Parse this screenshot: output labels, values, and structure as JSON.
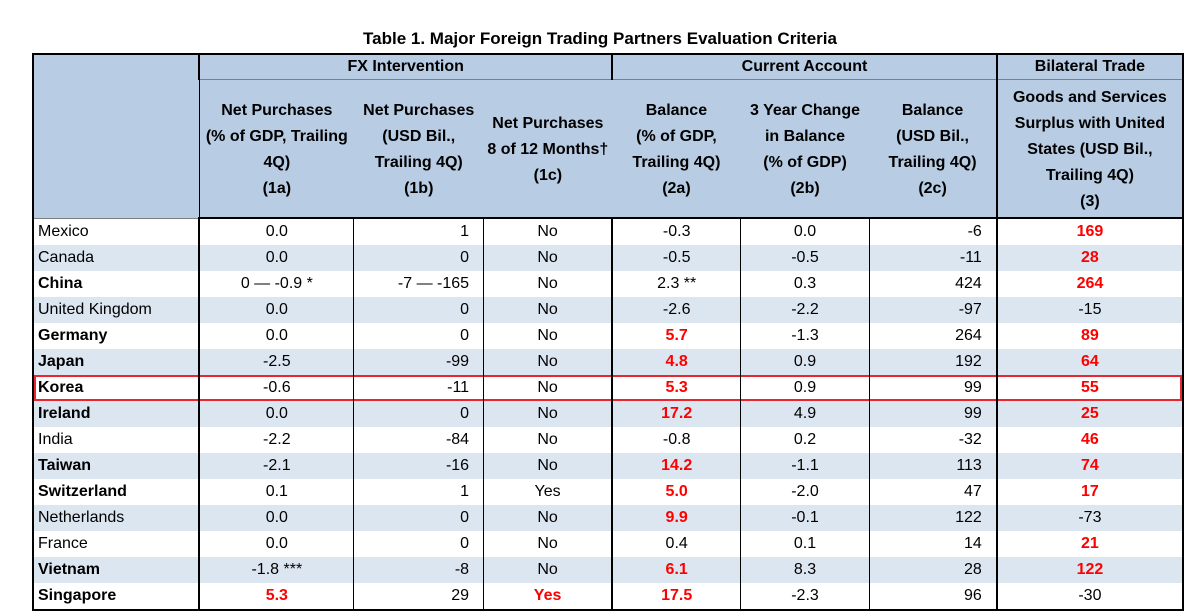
{
  "title": "Table 1. Major Foreign Trading Partners Evaluation Criteria",
  "groups": {
    "fx": "FX Intervention",
    "ca": "Current Account",
    "bt": "Bilateral Trade"
  },
  "columns": [
    "Net Purchases (% of GDP, Trailing 4Q) (1a)",
    "Net Purchases (USD Bil., Trailing 4Q) (1b)",
    "Net Purchases 8 of 12 Months† (1c)",
    "Balance (% of GDP, Trailing 4Q) (2a)",
    "3 Year Change in Balance (% of GDP) (2b)",
    "Balance (USD Bil., Trailing 4Q) (2c)",
    "Goods and Services Surplus with United States (USD Bil., Trailing 4Q) (3)"
  ],
  "rows": [
    {
      "country": "Mexico",
      "c1a": "0.0",
      "c1b": "1",
      "c1c": "No",
      "c2a": "-0.3",
      "c2b": "0.0",
      "c2c": "-6",
      "c3": "169"
    },
    {
      "country": "Canada",
      "c1a": "0.0",
      "c1b": "0",
      "c1c": "No",
      "c2a": "-0.5",
      "c2b": "-0.5",
      "c2c": "-11",
      "c3": "28"
    },
    {
      "country": "China",
      "c1a": "0 — -0.9 *",
      "c1b": "-7 — -165",
      "c1c": "No",
      "c2a": "2.3 **",
      "c2b": "0.3",
      "c2c": "424",
      "c3": "264"
    },
    {
      "country": "United Kingdom",
      "c1a": "0.0",
      "c1b": "0",
      "c1c": "No",
      "c2a": "-2.6",
      "c2b": "-2.2",
      "c2c": "-97",
      "c3": "-15"
    },
    {
      "country": "Germany",
      "c1a": "0.0",
      "c1b": "0",
      "c1c": "No",
      "c2a": "5.7",
      "c2b": "-1.3",
      "c2c": "264",
      "c3": "89"
    },
    {
      "country": "Japan",
      "c1a": "-2.5",
      "c1b": "-99",
      "c1c": "No",
      "c2a": "4.8",
      "c2b": "0.9",
      "c2c": "192",
      "c3": "64"
    },
    {
      "country": "Korea",
      "c1a": "-0.6",
      "c1b": "-11",
      "c1c": "No",
      "c2a": "5.3",
      "c2b": "0.9",
      "c2c": "99",
      "c3": "55"
    },
    {
      "country": "Ireland",
      "c1a": "0.0",
      "c1b": "0",
      "c1c": "No",
      "c2a": "17.2",
      "c2b": "4.9",
      "c2c": "99",
      "c3": "25"
    },
    {
      "country": "India",
      "c1a": "-2.2",
      "c1b": "-84",
      "c1c": "No",
      "c2a": "-0.8",
      "c2b": "0.2",
      "c2c": "-32",
      "c3": "46"
    },
    {
      "country": "Taiwan",
      "c1a": "-2.1",
      "c1b": "-16",
      "c1c": "No",
      "c2a": "14.2",
      "c2b": "-1.1",
      "c2c": "113",
      "c3": "74"
    },
    {
      "country": "Switzerland",
      "c1a": "0.1",
      "c1b": "1",
      "c1c": "Yes",
      "c2a": "5.0",
      "c2b": "-2.0",
      "c2c": "47",
      "c3": "17"
    },
    {
      "country": "Netherlands",
      "c1a": "0.0",
      "c1b": "0",
      "c1c": "No",
      "c2a": "9.9",
      "c2b": "-0.1",
      "c2c": "122",
      "c3": "-73"
    },
    {
      "country": "France",
      "c1a": "0.0",
      "c1b": "0",
      "c1c": "No",
      "c2a": "0.4",
      "c2b": "0.1",
      "c2c": "14",
      "c3": "21"
    },
    {
      "country": "Vietnam",
      "c1a": "-1.8 ***",
      "c1b": "-8",
      "c1c": "No",
      "c2a": "6.1",
      "c2b": "8.3",
      "c2c": "28",
      "c3": "122"
    },
    {
      "country": "Singapore",
      "c1a": "5.3",
      "c1b": "29",
      "c1c": "Yes",
      "c2a": "17.5",
      "c2b": "-2.3",
      "c2c": "96",
      "c3": "-30"
    }
  ],
  "styling": {
    "bold_countries": [
      "China",
      "Germany",
      "Japan",
      "Korea",
      "Ireland",
      "Taiwan",
      "Switzerland",
      "Vietnam",
      "Singapore"
    ],
    "red_cells": {
      "China": [
        "c3"
      ],
      "Mexico": [
        "c3"
      ],
      "Canada": [
        "c3"
      ],
      "Germany": [
        "c2a",
        "c3"
      ],
      "Japan": [
        "c2a",
        "c3"
      ],
      "Korea": [
        "c2a",
        "c3"
      ],
      "Ireland": [
        "c2a",
        "c3"
      ],
      "India": [
        "c3"
      ],
      "Taiwan": [
        "c2a",
        "c3"
      ],
      "Switzerland": [
        "c2a",
        "c3"
      ],
      "Netherlands": [
        "c2a"
      ],
      "France": [
        "c3"
      ],
      "Vietnam": [
        "c2a",
        "c3"
      ],
      "Singapore": [
        "c1a",
        "c1c",
        "c2a"
      ]
    },
    "highlight_row": "Korea",
    "header_bg": "#b8cce4",
    "stripe_bg": "#dce6f1",
    "highlight_color": "#ff0000",
    "box_color": "#e8262b"
  }
}
